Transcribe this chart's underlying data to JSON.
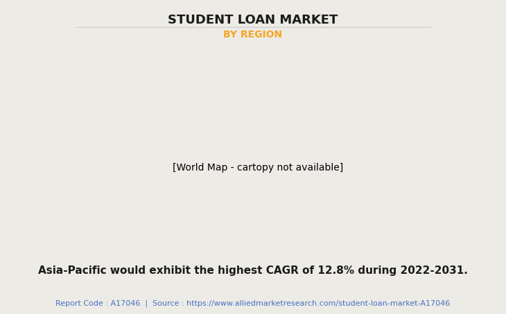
{
  "title": "STUDENT LOAN MARKET",
  "subtitle": "BY REGION",
  "subtitle_color": "#F5A623",
  "background_color": "#EDEBE6",
  "map_land_color": "#8FBC8F",
  "map_usa_color": "#E8E8E8",
  "map_border_color": "#7EB5C8",
  "map_shadow_color": "#999999",
  "annotation_text": "Asia-Pacific would exhibit the highest CAGR of 12.8% during 2022-2031.",
  "footer_text": "Report Code : A17046  |  Source : https://www.alliedmarketresearch.com/student-loan-market-A17046",
  "footer_color": "#4472C4",
  "title_fontsize": 13,
  "subtitle_fontsize": 10,
  "annotation_fontsize": 11,
  "footer_fontsize": 8
}
